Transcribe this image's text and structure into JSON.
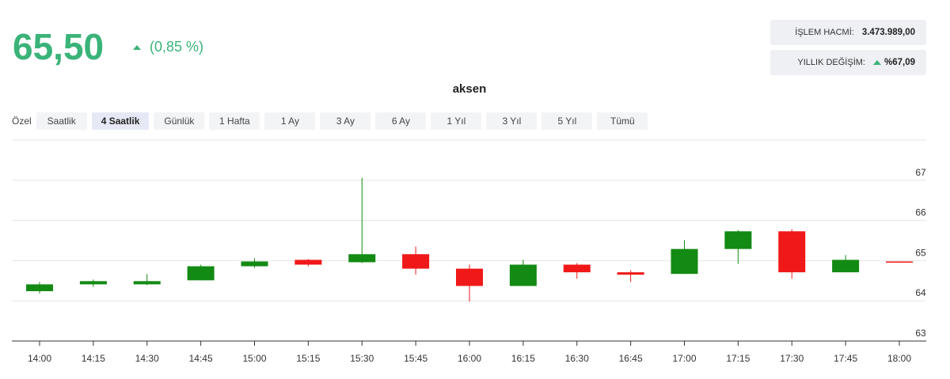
{
  "header": {
    "price": "65,50",
    "change": "(0,85 %)"
  },
  "stats": [
    {
      "label": "İŞLEM HACMİ:",
      "value": "3.473.989,00"
    },
    {
      "label": "YILLIK DEĞİŞİM:",
      "value": "%67,09"
    }
  ],
  "ranges": {
    "custom": "Özel",
    "buttons": [
      "Saatlik",
      "4 Saatlik",
      "Günlük",
      "1 Hafta",
      "1 Ay",
      "3 Ay",
      "6 Ay",
      "1 Yıl",
      "3 Yıl",
      "5 Yıl",
      "Tümü"
    ],
    "active": 1
  },
  "chart_data": {
    "type": "candlestick",
    "title": "aksen",
    "categories": [
      "14:00",
      "14:15",
      "14:30",
      "14:45",
      "15:00",
      "15:15",
      "15:30",
      "15:45",
      "16:00",
      "16:15",
      "16:30",
      "16:45",
      "17:00",
      "17:15",
      "17:30",
      "17:45",
      "18:00"
    ],
    "open": [
      64.24,
      64.41,
      64.41,
      64.51,
      64.86,
      65.02,
      64.96,
      65.16,
      64.8,
      64.37,
      64.9,
      64.71,
      64.67,
      65.29,
      65.73,
      64.71,
      64.98
    ],
    "high": [
      64.47,
      64.53,
      64.67,
      64.9,
      65.06,
      65.04,
      67.06,
      65.35,
      64.9,
      65.02,
      64.94,
      64.76,
      65.51,
      65.76,
      65.78,
      65.14,
      64.98
    ],
    "low": [
      64.18,
      64.35,
      64.39,
      64.51,
      64.82,
      64.86,
      64.94,
      64.65,
      63.98,
      64.37,
      64.55,
      64.47,
      64.67,
      64.92,
      64.55,
      64.71,
      64.97
    ],
    "close": [
      64.41,
      64.49,
      64.49,
      64.86,
      64.98,
      64.9,
      65.16,
      64.8,
      64.37,
      64.9,
      64.71,
      64.65,
      65.29,
      65.73,
      64.71,
      65.02,
      64.97
    ],
    "up_color": "#138a13",
    "down_color": "#f01818",
    "ylim": [
      63,
      68
    ],
    "yticks": [
      63,
      64,
      65,
      66,
      67
    ],
    "grid": true
  }
}
